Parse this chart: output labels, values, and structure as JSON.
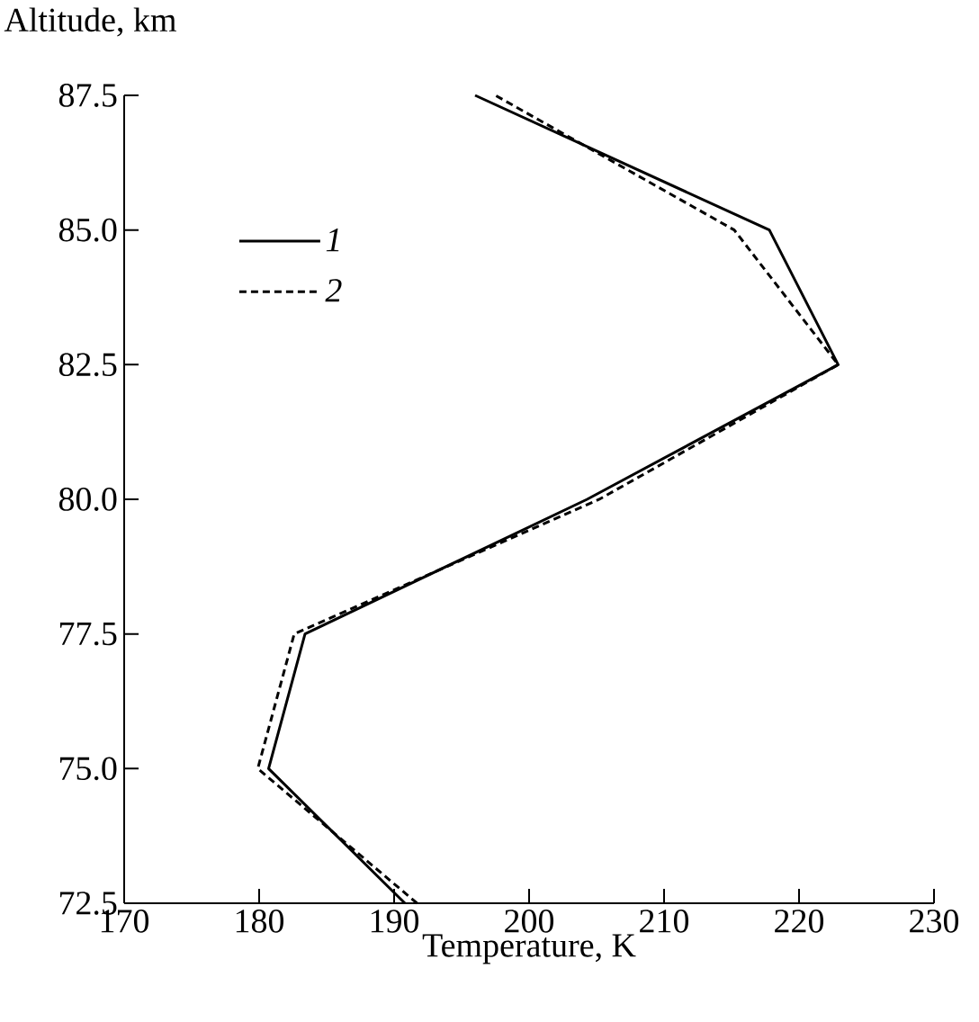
{
  "chart_data": {
    "type": "line",
    "xlabel": "Temperature, K",
    "ylabel": "Altitude, km",
    "xlim": [
      170,
      230
    ],
    "ylim": [
      72.5,
      87.5
    ],
    "xticks": [
      170,
      180,
      190,
      200,
      210,
      220,
      230
    ],
    "yticks": [
      {
        "value": 72.5,
        "label": "72.5"
      },
      {
        "value": 75,
        "label": "75.0"
      },
      {
        "value": 77.5,
        "label": "77.5"
      },
      {
        "value": 80,
        "label": "80.0"
      },
      {
        "value": 82.5,
        "label": "82.5"
      },
      {
        "value": 85,
        "label": "85.0"
      },
      {
        "value": 87.5,
        "label": "87.5"
      }
    ],
    "legend": "top left",
    "grid": false,
    "marker": "none",
    "series": [
      {
        "name": "1",
        "color": "#000000",
        "line_style": "solid",
        "x": [
          190.8,
          180.7,
          183.4,
          204.3,
          222.9,
          217.8,
          196.0
        ],
        "values": [
          72.5,
          75.0,
          77.5,
          80.0,
          82.5,
          85.0,
          87.5
        ]
      },
      {
        "name": "2",
        "color": "#000000",
        "line_style": "dashed",
        "x": [
          191.7,
          179.9,
          182.6,
          205.2,
          222.9,
          215.2,
          197.5
        ],
        "values": [
          72.5,
          75.0,
          77.5,
          80.0,
          82.5,
          85.0,
          87.5
        ]
      }
    ]
  }
}
